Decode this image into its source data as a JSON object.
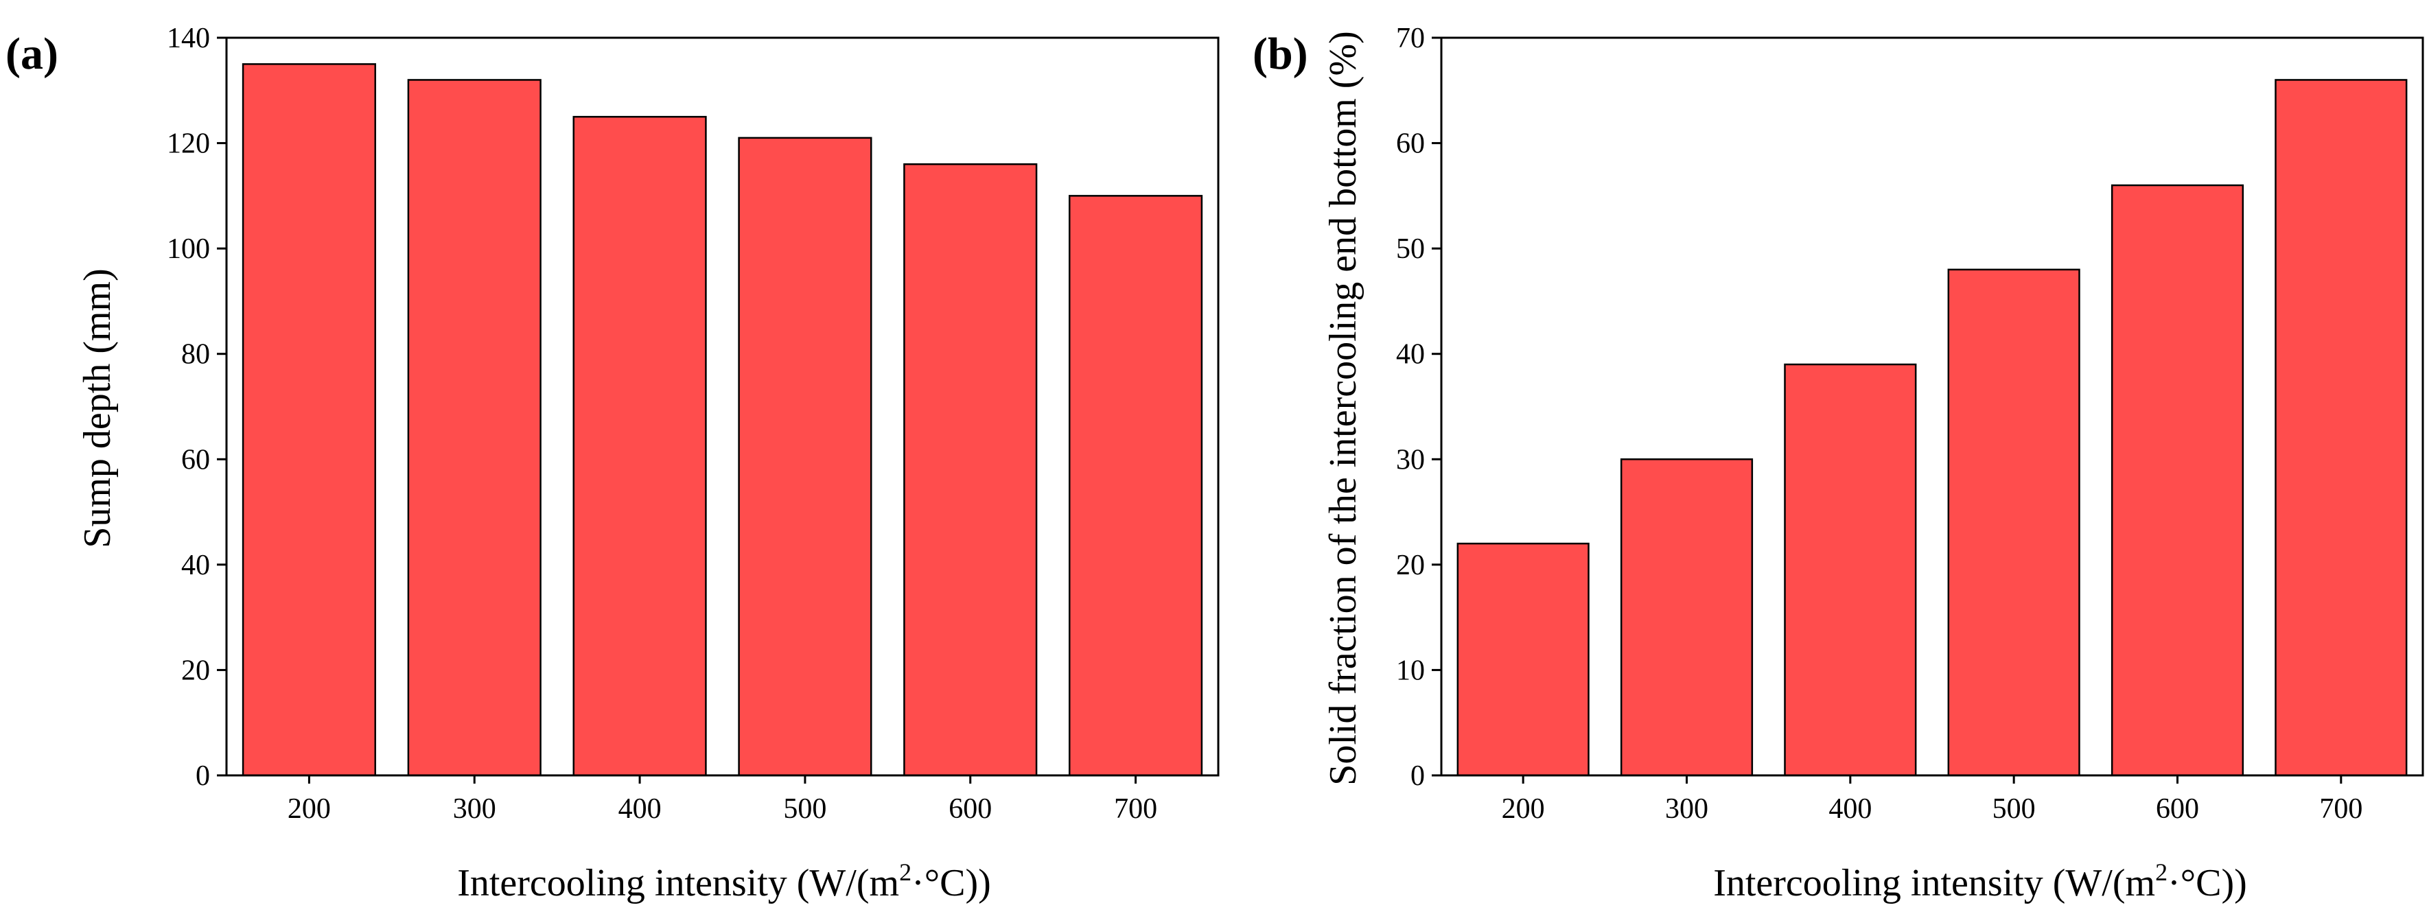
{
  "chart_data": [
    {
      "type": "bar",
      "panel_label": "(a)",
      "categories": [
        "200",
        "300",
        "400",
        "500",
        "600",
        "700"
      ],
      "values": [
        135,
        132,
        125,
        121,
        116,
        110
      ],
      "xlabel": "Intercooling intensity (W/(m²·°C))",
      "xlabel_parts": {
        "pre": "Intercooling intensity (W/(m",
        "sup": "2",
        "post": "·°C))"
      },
      "ylabel": "Sump depth (mm)",
      "ylim": [
        0,
        140
      ],
      "yticks": [
        0,
        20,
        40,
        60,
        80,
        100,
        120,
        140
      ],
      "bar_color": "#ff4d4d",
      "grid": false
    },
    {
      "type": "bar",
      "panel_label": "(b)",
      "categories": [
        "200",
        "300",
        "400",
        "500",
        "600",
        "700"
      ],
      "values": [
        22,
        30,
        39,
        48,
        56,
        66
      ],
      "xlabel": "Intercooling intensity (W/(m²·°C))",
      "xlabel_parts": {
        "pre": "Intercooling intensity (W/(m",
        "sup": "2",
        "post": "·°C))"
      },
      "ylabel": "Solid fraction of the intercooling end bottom (%)",
      "ylim": [
        0,
        70
      ],
      "yticks": [
        0,
        10,
        20,
        30,
        40,
        50,
        60,
        70
      ],
      "bar_color": "#ff4d4d",
      "grid": false
    }
  ]
}
